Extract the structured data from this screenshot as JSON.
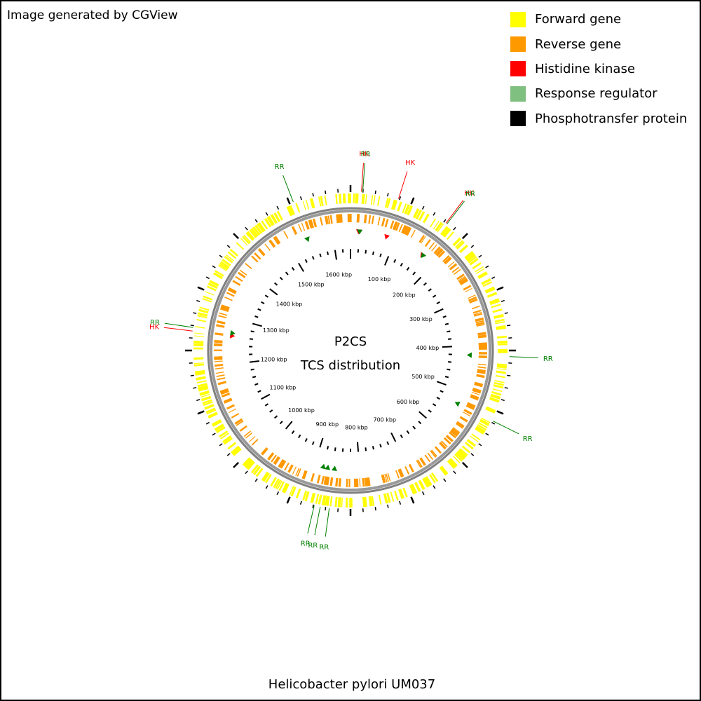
{
  "credit": "Image generated by CGView",
  "organism": "Helicobacter pylori UM037",
  "center": {
    "line1": "P2CS",
    "line2": "TCS distribution"
  },
  "legend": [
    {
      "label": "Forward gene",
      "color": "#FFFF00"
    },
    {
      "label": "Reverse gene",
      "color": "#FF9900"
    },
    {
      "label": "Histidine kinase",
      "color": "#FF0000"
    },
    {
      "label": "Response regulator",
      "color": "#7FBF7F"
    },
    {
      "label": "Phosphotransfer protein",
      "color": "#000000"
    }
  ],
  "map": {
    "genome_length_kbp": 1640,
    "colors": {
      "forward": "#FFFF00",
      "reverse": "#FF9900",
      "hk": "#FF0000",
      "rr": "#008000",
      "backbone": "#808080"
    },
    "ruler_labels": [
      "100 kbp",
      "200 kbp",
      "300 kbp",
      "400 kbp",
      "500 kbp",
      "600 kbp",
      "700 kbp",
      "800 kbp",
      "900 kbp",
      "1000 kbp",
      "1100 kbp",
      "1200 kbp",
      "1300 kbp",
      "1400 kbp",
      "1500 kbp",
      "1600 kbp"
    ],
    "features": [
      {
        "label": "HK",
        "type": "hk",
        "position_kbp": 18
      },
      {
        "label": "RR",
        "type": "rr",
        "position_kbp": 20
      },
      {
        "label": "HK",
        "type": "hk",
        "position_kbp": 80
      },
      {
        "label": "HK",
        "type": "hk",
        "position_kbp": 168
      },
      {
        "label": "RR",
        "type": "rr",
        "position_kbp": 170
      },
      {
        "label": "RR",
        "type": "rr",
        "position_kbp": 420
      },
      {
        "label": "RR",
        "type": "rr",
        "position_kbp": 530
      },
      {
        "label": "RR",
        "type": "rr",
        "position_kbp": 855
      },
      {
        "label": "RR",
        "type": "rr",
        "position_kbp": 870
      },
      {
        "label": "RR",
        "type": "rr",
        "position_kbp": 880
      },
      {
        "label": "HK",
        "type": "hk",
        "position_kbp": 1262
      },
      {
        "label": "RR",
        "type": "rr",
        "position_kbp": 1268
      },
      {
        "label": "RR",
        "type": "rr",
        "position_kbp": 1544
      }
    ]
  }
}
